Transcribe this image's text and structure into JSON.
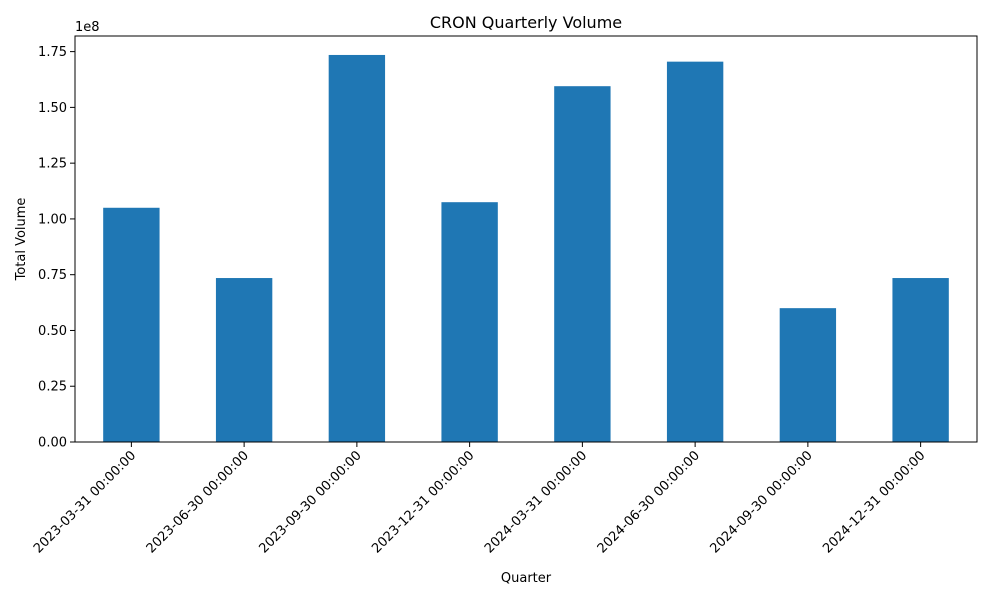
{
  "chart_data": {
    "type": "bar",
    "title": "CRON Quarterly Volume",
    "xlabel": "Quarter",
    "ylabel": "Total Volume",
    "offset_text": "1e8",
    "categories": [
      "2023-03-31 00:00:00",
      "2023-06-30 00:00:00",
      "2023-09-30 00:00:00",
      "2023-12-31 00:00:00",
      "2024-03-31 00:00:00",
      "2024-06-30 00:00:00",
      "2024-09-30 00:00:00",
      "2024-12-31 00:00:00"
    ],
    "values": [
      105000000,
      73500000,
      173500000,
      107500000,
      159500000,
      170500000,
      60000000,
      73500000
    ],
    "ylim": [
      0,
      182000000
    ],
    "yticks": [
      0,
      0.25,
      0.5,
      0.75,
      1.0,
      1.25,
      1.5,
      1.75
    ],
    "ytick_labels": [
      "0.00",
      "0.25",
      "0.50",
      "0.75",
      "1.00",
      "1.25",
      "1.50",
      "1.75"
    ],
    "bar_color": "#1f77b4",
    "grid": false,
    "legend": "none"
  }
}
